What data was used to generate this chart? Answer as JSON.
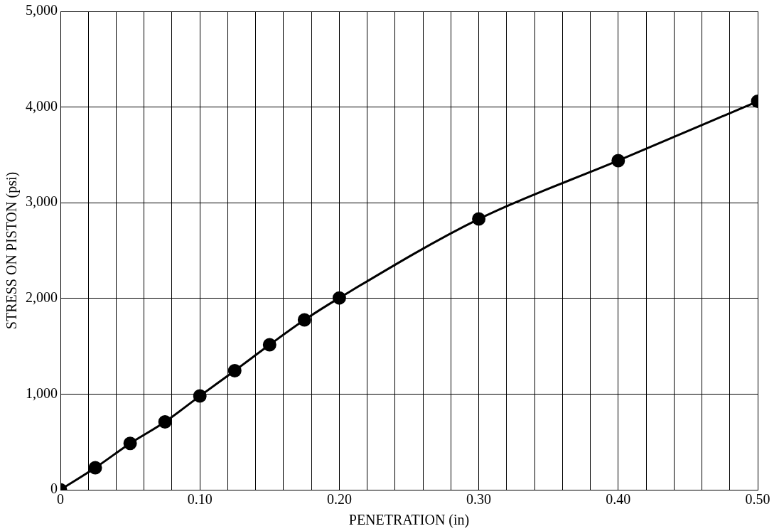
{
  "chart_data": {
    "type": "line",
    "xlabel": "PENETRATION (in)",
    "ylabel": "STRESS ON PISTON (psi)",
    "x": [
      0,
      0.025,
      0.05,
      0.075,
      0.1,
      0.125,
      0.15,
      0.175,
      0.2,
      0.3,
      0.4,
      0.5
    ],
    "series": [
      {
        "color": "#000000",
        "values": [
          0,
          230,
          485,
          710,
          980,
          1245,
          1515,
          1775,
          2005,
          2830,
          3440,
          4060
        ]
      }
    ],
    "xlim": [
      0,
      0.5
    ],
    "xticks": [
      {
        "value": 0,
        "label": "0"
      },
      {
        "value": 0.02,
        "label": null
      },
      {
        "value": 0.04,
        "label": null
      },
      {
        "value": 0.06,
        "label": null
      },
      {
        "value": 0.08,
        "label": null
      },
      {
        "value": 0.1,
        "label": "0.10"
      },
      {
        "value": 0.12,
        "label": null
      },
      {
        "value": 0.14,
        "label": null
      },
      {
        "value": 0.16,
        "label": null
      },
      {
        "value": 0.18,
        "label": null
      },
      {
        "value": 0.2,
        "label": "0.20"
      },
      {
        "value": 0.22,
        "label": null
      },
      {
        "value": 0.24,
        "label": null
      },
      {
        "value": 0.26,
        "label": null
      },
      {
        "value": 0.28,
        "label": null
      },
      {
        "value": 0.3,
        "label": "0.30"
      },
      {
        "value": 0.32,
        "label": null
      },
      {
        "value": 0.34,
        "label": null
      },
      {
        "value": 0.36,
        "label": null
      },
      {
        "value": 0.38,
        "label": null
      },
      {
        "value": 0.4,
        "label": "0.40"
      },
      {
        "value": 0.42,
        "label": null
      },
      {
        "value": 0.44,
        "label": null
      },
      {
        "value": 0.46,
        "label": null
      },
      {
        "value": 0.48,
        "label": null
      },
      {
        "value": 0.5,
        "label": "0.50"
      }
    ],
    "ylim": [
      0,
      5000
    ],
    "yticks": [
      {
        "value": 0,
        "label": "0"
      },
      {
        "value": 1000,
        "label": "1,000"
      },
      {
        "value": 2000,
        "label": "2,000"
      },
      {
        "value": 3000,
        "label": "3,000"
      },
      {
        "value": 4000,
        "label": "4,000"
      },
      {
        "value": 5000,
        "label": "5,000"
      }
    ],
    "grid": true,
    "legend": false,
    "marker": "circle",
    "line_style": "solid"
  }
}
